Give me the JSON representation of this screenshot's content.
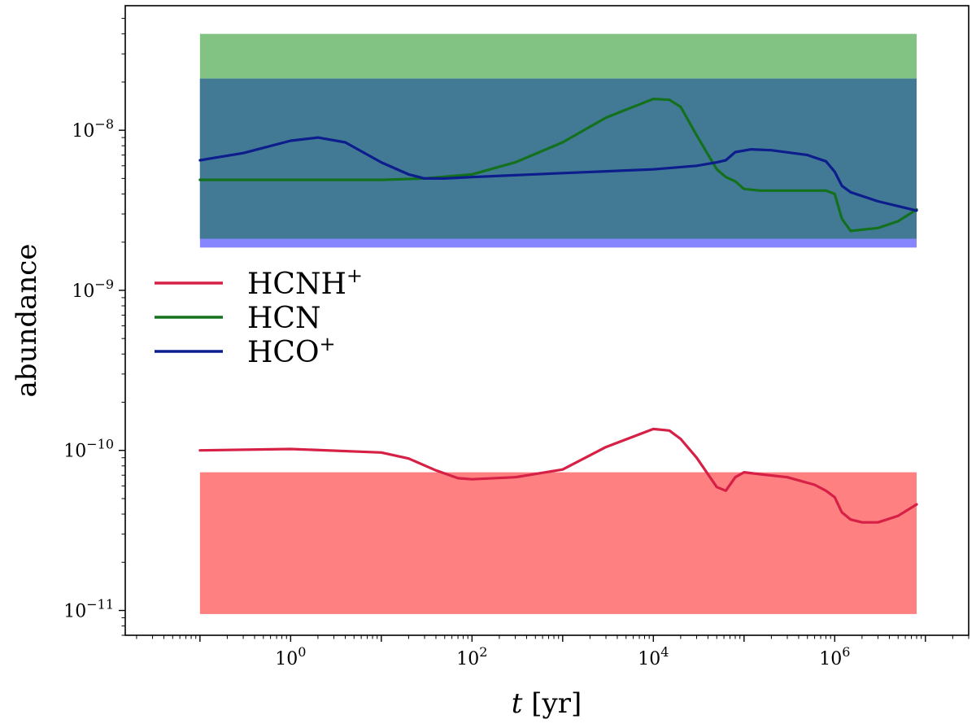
{
  "chart_data": {
    "type": "line",
    "xlabel": "t [yr]",
    "xlabel_italic": "t",
    "xlabel_unit": "[yr]",
    "ylabel": "abundance",
    "xscale": "log",
    "yscale": "log",
    "xlim": [
      0.015,
      30000000
    ],
    "ylim": [
      7e-12,
      6e-08
    ],
    "x_ticks": [
      {
        "value": 1,
        "base": "10",
        "exp": "0"
      },
      {
        "value": 100,
        "base": "10",
        "exp": "2"
      },
      {
        "value": 10000,
        "base": "10",
        "exp": "4"
      },
      {
        "value": 1000000,
        "base": "10",
        "exp": "6"
      }
    ],
    "y_ticks": [
      {
        "value": 1e-11,
        "base": "10",
        "exp": "−11"
      },
      {
        "value": 1e-10,
        "base": "10",
        "exp": "−10"
      },
      {
        "value": 1e-09,
        "base": "10",
        "exp": "−9"
      },
      {
        "value": 1e-08,
        "base": "10",
        "exp": "−8"
      }
    ],
    "grid": false,
    "legend_position": "center-left",
    "bands": [
      {
        "name": "HCN observed range",
        "x_range": [
          0.1,
          8000000
        ],
        "y_range": [
          2.1e-09,
          4e-08
        ],
        "color": "#82c282"
      },
      {
        "name": "HCO+ observed range",
        "x_range": [
          0.1,
          8000000
        ],
        "y_range": [
          1.85e-09,
          2.1e-08
        ],
        "color": "#8686ff"
      },
      {
        "name": "HCNH+ observed range",
        "x_range": [
          0.1,
          8000000
        ],
        "y_range": [
          9.5e-12,
          7.3e-11
        ],
        "color": "#ff8080"
      }
    ],
    "overlap_color": "#427a96",
    "series": [
      {
        "name": "HCNH",
        "name_sup": "+",
        "color": "#d62045",
        "x": [
          0.1,
          1,
          10,
          20,
          40,
          70,
          100,
          300,
          1000,
          3000,
          10000,
          15000,
          20000,
          30000,
          50000,
          63000,
          80000,
          100000,
          150000,
          300000,
          600000,
          800000,
          1000000,
          1200000,
          1500000,
          2000000,
          3000000,
          5000000,
          8000000
        ],
        "y": [
          1e-10,
          1.02e-10,
          9.7e-11,
          8.9e-11,
          7.5e-11,
          6.7e-11,
          6.6e-11,
          6.8e-11,
          7.6e-11,
          1.05e-10,
          1.36e-10,
          1.33e-10,
          1.18e-10,
          9e-11,
          5.9e-11,
          5.6e-11,
          6.8e-11,
          7.3e-11,
          7.1e-11,
          6.8e-11,
          6.1e-11,
          5.6e-11,
          5.1e-11,
          4.1e-11,
          3.7e-11,
          3.55e-11,
          3.55e-11,
          3.9e-11,
          4.6e-11
        ]
      },
      {
        "name": "HCN",
        "name_sup": "",
        "color": "#13701d",
        "x": [
          0.1,
          1,
          10,
          30,
          100,
          300,
          1000,
          3000,
          10000,
          15000,
          20000,
          30000,
          50000,
          63000,
          80000,
          100000,
          150000,
          300000,
          800000,
          1000000,
          1200000,
          1500000,
          3000000,
          5000000,
          8000000
        ],
        "y": [
          4.9e-09,
          4.9e-09,
          4.9e-09,
          5e-09,
          5.3e-09,
          6.3e-09,
          8.4e-09,
          1.2e-08,
          1.57e-08,
          1.55e-08,
          1.4e-08,
          9.3e-09,
          5.7e-09,
          5.1e-09,
          4.8e-09,
          4.3e-09,
          4.2e-09,
          4.2e-09,
          4.2e-09,
          4e-09,
          2.8e-09,
          2.35e-09,
          2.45e-09,
          2.7e-09,
          3.2e-09
        ]
      },
      {
        "name": "HCO",
        "name_sup": "+",
        "color": "#0d1d8c",
        "x": [
          0.1,
          0.3,
          1,
          2,
          4,
          10,
          20,
          30,
          50,
          100,
          1000,
          10000,
          30000,
          50000,
          63000,
          80000,
          120000,
          200000,
          500000,
          800000,
          1000000,
          1200000,
          1500000,
          3000000,
          8000000
        ],
        "y": [
          6.5e-09,
          7.2e-09,
          8.6e-09,
          9e-09,
          8.4e-09,
          6.3e-09,
          5.3e-09,
          5e-09,
          5e-09,
          5.1e-09,
          5.4e-09,
          5.7e-09,
          6e-09,
          6.3e-09,
          6.5e-09,
          7.3e-09,
          7.6e-09,
          7.5e-09,
          7e-09,
          6.4e-09,
          5.5e-09,
          4.5e-09,
          4.1e-09,
          3.6e-09,
          3.15e-09
        ]
      }
    ]
  }
}
